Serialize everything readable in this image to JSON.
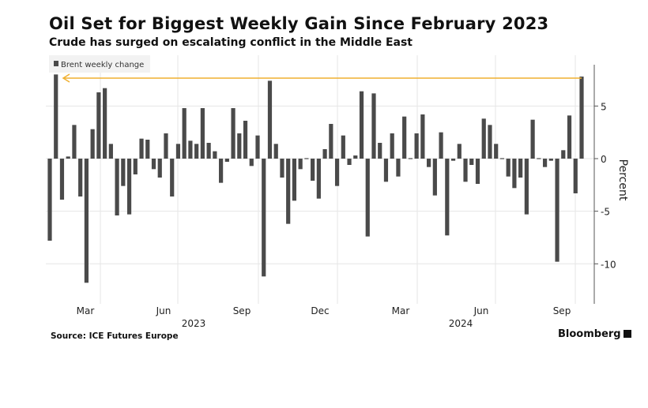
{
  "title": "Oil Set for Biggest Weekly Gain Since February 2023",
  "subtitle": "Crude has surged on escalating conflict in the Middle East",
  "source": "Source: ICE Futures Europe",
  "brand": "Bloomberg",
  "chart_data": {
    "type": "bar",
    "title": "Oil Set for Biggest Weekly Gain Since February 2023",
    "ylabel": "Percent",
    "legend": [
      "Brent weekly change"
    ],
    "legend_placement": "top-left",
    "ylim": [
      -13.5,
      9
    ],
    "yticks": [
      5,
      0,
      -5,
      -10
    ],
    "xtick_labels": [
      "Mar",
      "Jun",
      "Sep",
      "Dec",
      "Mar",
      "Jun",
      "Sep"
    ],
    "year_labels": [
      "2023",
      "2024"
    ],
    "grid": true,
    "bar_color": "#4a4a4a",
    "reference_line": {
      "value": 7.8,
      "color": "#f0b030"
    },
    "series": [
      {
        "name": "Brent weekly change",
        "values": [
          -7.8,
          8.0,
          -3.9,
          0.2,
          3.2,
          -3.6,
          -11.8,
          2.8,
          6.3,
          6.7,
          1.4,
          -5.4,
          -2.6,
          -5.3,
          -1.5,
          1.9,
          1.8,
          -1.0,
          -1.8,
          2.4,
          -3.6,
          1.4,
          4.8,
          1.7,
          1.4,
          4.8,
          1.5,
          0.7,
          -2.3,
          -0.3,
          4.8,
          2.4,
          3.6,
          -0.7,
          2.2,
          -11.2,
          7.4,
          1.4,
          -1.8,
          -6.2,
          -4.0,
          -1.0,
          0.0,
          -2.1,
          -3.8,
          0.9,
          3.3,
          -2.6,
          2.2,
          -0.6,
          0.3,
          6.4,
          -7.4,
          6.2,
          1.5,
          -2.2,
          2.4,
          -1.7,
          4.0,
          0.0,
          2.4,
          4.2,
          -0.8,
          -3.5,
          2.5,
          -7.3,
          -0.2,
          1.4,
          -2.2,
          -0.6,
          -2.4,
          3.8,
          3.2,
          1.4,
          0.0,
          -1.7,
          -2.8,
          -1.8,
          -5.3,
          3.7,
          0.0,
          -0.8,
          -0.2,
          -9.8,
          0.8,
          4.1,
          -3.3,
          7.8
        ]
      }
    ]
  }
}
